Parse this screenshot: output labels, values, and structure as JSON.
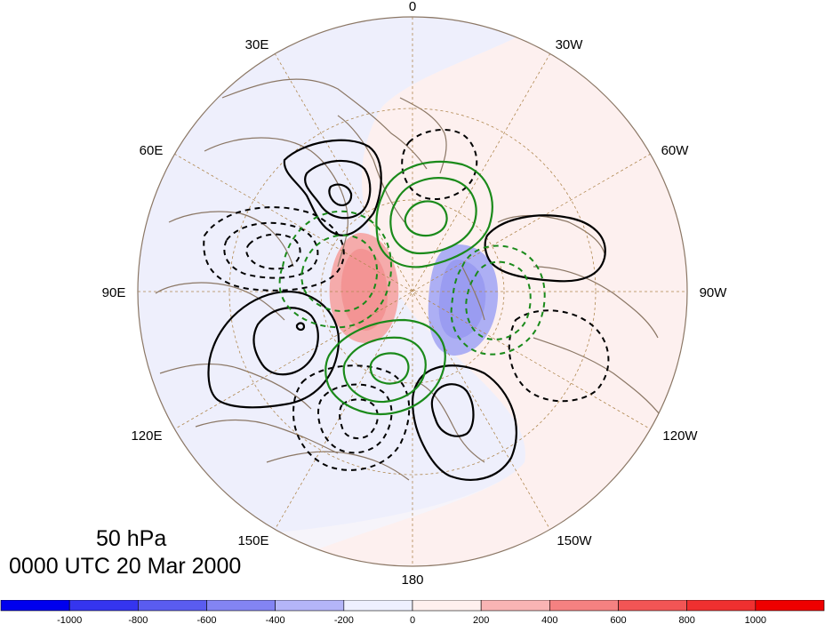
{
  "map": {
    "projection": "north polar stereographic",
    "longitude_labels": [
      {
        "text": "0",
        "lon": 0
      },
      {
        "text": "30W",
        "lon": -30
      },
      {
        "text": "60W",
        "lon": -60
      },
      {
        "text": "90W",
        "lon": -90
      },
      {
        "text": "120W",
        "lon": -120
      },
      {
        "text": "150W",
        "lon": -150
      },
      {
        "text": "180",
        "lon": 180
      },
      {
        "text": "150E",
        "lon": 150
      },
      {
        "text": "120E",
        "lon": 120
      },
      {
        "text": "90E",
        "lon": 90
      },
      {
        "text": "60E",
        "lon": 60
      },
      {
        "text": "30E",
        "lon": 30
      }
    ],
    "contours": {
      "positive_style": "solid black",
      "negative_style": "dashed black",
      "wave_positive_style": "solid green",
      "wave_negative_style": "dashed green"
    },
    "shading_colors": {
      "strong_negative": "#5a5cf0",
      "weak_negative": "#eef0ff",
      "weak_positive": "#fff0ee",
      "strong_positive": "#f26b6b"
    },
    "coastline_color": "#8b7765",
    "graticule_color": "#b08850"
  },
  "title": {
    "level": "50 hPa",
    "datetime": "0000 UTC 20 Mar 2000"
  },
  "colorbar": {
    "labels": [
      "-1000",
      "-800",
      "-600",
      "-400",
      "-200",
      "0",
      "200",
      "400",
      "600",
      "800",
      "1000"
    ],
    "colors": [
      "#0000ee",
      "#3535ef",
      "#5a5cf0",
      "#8384f3",
      "#b4b5f8",
      "#eef0ff",
      "#fff0ee",
      "#f9b4b4",
      "#f58181",
      "#f25555",
      "#ef3030",
      "#ee0000"
    ]
  }
}
